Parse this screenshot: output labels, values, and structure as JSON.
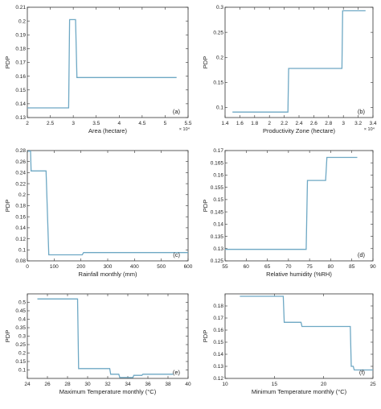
{
  "figure": {
    "line_color": "#6ea8c4",
    "axis_color": "#333333"
  },
  "chart_data": [
    {
      "type": "line",
      "panel_label": "(a)",
      "xlabel": "Area (hectare)",
      "ylabel": "PDP",
      "x_multiplier": "× 10⁴",
      "xlim": [
        2,
        5.5
      ],
      "ylim": [
        0.13,
        0.21
      ],
      "xticks": [
        2,
        2.5,
        3,
        3.5,
        4,
        4.5,
        5,
        5.5
      ],
      "xtick_labels": [
        "2",
        "2.5",
        "3",
        "3.5",
        "4",
        "4.5",
        "5",
        "5.5"
      ],
      "yticks": [
        0.13,
        0.14,
        0.15,
        0.16,
        0.17,
        0.18,
        0.19,
        0.2,
        0.21
      ],
      "ytick_labels": [
        "0.13",
        "0.14",
        "0.15",
        "0.16",
        "0.17",
        "0.18",
        "0.19",
        "0.2",
        "0.21"
      ],
      "x": [
        2.0,
        2.9,
        2.92,
        3.05,
        3.08,
        5.25
      ],
      "y": [
        0.137,
        0.137,
        0.201,
        0.201,
        0.159,
        0.159
      ]
    },
    {
      "type": "line",
      "panel_label": "(b)",
      "xlabel": "Productivity Zone (hectare)",
      "ylabel": "PDP",
      "x_multiplier": "× 10⁴",
      "xlim": [
        1.4,
        3.4
      ],
      "ylim": [
        0.08,
        0.3
      ],
      "xticks": [
        1.4,
        1.6,
        1.8,
        2,
        2.2,
        2.4,
        2.6,
        2.8,
        3,
        3.2,
        3.4
      ],
      "xtick_labels": [
        "1.4",
        "1.6",
        "1.8",
        "2",
        "2.2",
        "2.4",
        "2.6",
        "2.8",
        "3",
        "3.2",
        "3.4"
      ],
      "yticks": [
        0.1,
        0.15,
        0.2,
        0.25,
        0.3
      ],
      "ytick_labels": [
        "0.1",
        "0.15",
        "0.2",
        "0.25",
        "0.3"
      ],
      "x": [
        1.5,
        2.25,
        2.26,
        2.98,
        2.99,
        3.3
      ],
      "y": [
        0.091,
        0.091,
        0.178,
        0.178,
        0.293,
        0.293
      ]
    },
    {
      "type": "line",
      "panel_label": "(c)",
      "xlabel": "Rainfall monthly (mm)",
      "ylabel": "PDP",
      "xlim": [
        0,
        600
      ],
      "ylim": [
        0.08,
        0.28
      ],
      "xticks": [
        0,
        100,
        200,
        300,
        400,
        500,
        600
      ],
      "xtick_labels": [
        "0",
        "100",
        "200",
        "300",
        "400",
        "500",
        "600"
      ],
      "yticks": [
        0.08,
        0.1,
        0.12,
        0.14,
        0.16,
        0.18,
        0.2,
        0.22,
        0.24,
        0.26,
        0.28
      ],
      "ytick_labels": [
        "0.08",
        "0.1",
        "0.12",
        "0.14",
        "0.16",
        "0.18",
        "0.2",
        "0.22",
        "0.24",
        "0.26",
        "0.28"
      ],
      "x": [
        2,
        12,
        14,
        70,
        80,
        205,
        210,
        600
      ],
      "y": [
        0.279,
        0.279,
        0.243,
        0.243,
        0.091,
        0.091,
        0.095,
        0.095
      ]
    },
    {
      "type": "line",
      "panel_label": "(d)",
      "xlabel": "Relative humidity (%RH)",
      "ylabel": "PDP",
      "xlim": [
        55,
        90
      ],
      "ylim": [
        0.125,
        0.17
      ],
      "xticks": [
        55,
        60,
        65,
        70,
        75,
        80,
        85,
        90
      ],
      "xtick_labels": [
        "55",
        "60",
        "65",
        "70",
        "75",
        "80",
        "85",
        "90"
      ],
      "yticks": [
        0.125,
        0.13,
        0.135,
        0.14,
        0.145,
        0.15,
        0.155,
        0.16,
        0.165,
        0.17
      ],
      "ytick_labels": [
        "0.125",
        "0.13",
        "0.135",
        "0.14",
        "0.145",
        "0.15",
        "0.155",
        "0.16",
        "0.165",
        "0.17"
      ],
      "x": [
        55,
        74.2,
        74.5,
        78.8,
        79.1,
        86.3
      ],
      "y": [
        0.1297,
        0.1297,
        0.1578,
        0.1578,
        0.1672,
        0.1672
      ]
    },
    {
      "type": "line",
      "panel_label": "(e)",
      "xlabel": "Maximum Temperature monthly (°C)",
      "ylabel": "PDP",
      "xlim": [
        24,
        40
      ],
      "ylim": [
        0.05,
        0.55
      ],
      "xticks": [
        24,
        26,
        28,
        30,
        32,
        34,
        36,
        38,
        40
      ],
      "xtick_labels": [
        "24",
        "26",
        "28",
        "30",
        "32",
        "34",
        "36",
        "38",
        "40"
      ],
      "yticks": [
        0.1,
        0.15,
        0.2,
        0.25,
        0.3,
        0.35,
        0.4,
        0.45,
        0.5
      ],
      "ytick_labels": [
        "0.1",
        "0.15",
        "0.2",
        "0.25",
        "0.3",
        "0.35",
        "0.4",
        "0.45",
        "0.5"
      ],
      "x": [
        25,
        29,
        29.1,
        32.2,
        32.3,
        33.1,
        33.2,
        34.5,
        34.6,
        35.4,
        35.5,
        38.5
      ],
      "y": [
        0.52,
        0.52,
        0.108,
        0.108,
        0.075,
        0.075,
        0.055,
        0.055,
        0.068,
        0.068,
        0.075,
        0.075
      ]
    },
    {
      "type": "line",
      "panel_label": "(f)",
      "xlabel": "Minimum Temperature monthly (°C)",
      "ylabel": "PDP",
      "xlim": [
        10,
        25
      ],
      "ylim": [
        0.12,
        0.19
      ],
      "xticks": [
        10,
        15,
        20,
        25
      ],
      "xtick_labels": [
        "10",
        "15",
        "20",
        "25"
      ],
      "yticks": [
        0.12,
        0.13,
        0.14,
        0.15,
        0.16,
        0.17,
        0.18
      ],
      "ytick_labels": [
        "0.12",
        "0.13",
        "0.14",
        "0.15",
        "0.16",
        "0.17",
        "0.18"
      ],
      "x": [
        11.5,
        15.9,
        16.0,
        17.7,
        17.8,
        22.7,
        22.8,
        23.0,
        23.1,
        25
      ],
      "y": [
        0.188,
        0.188,
        0.1665,
        0.1665,
        0.163,
        0.163,
        0.13,
        0.13,
        0.127,
        0.127
      ]
    }
  ]
}
